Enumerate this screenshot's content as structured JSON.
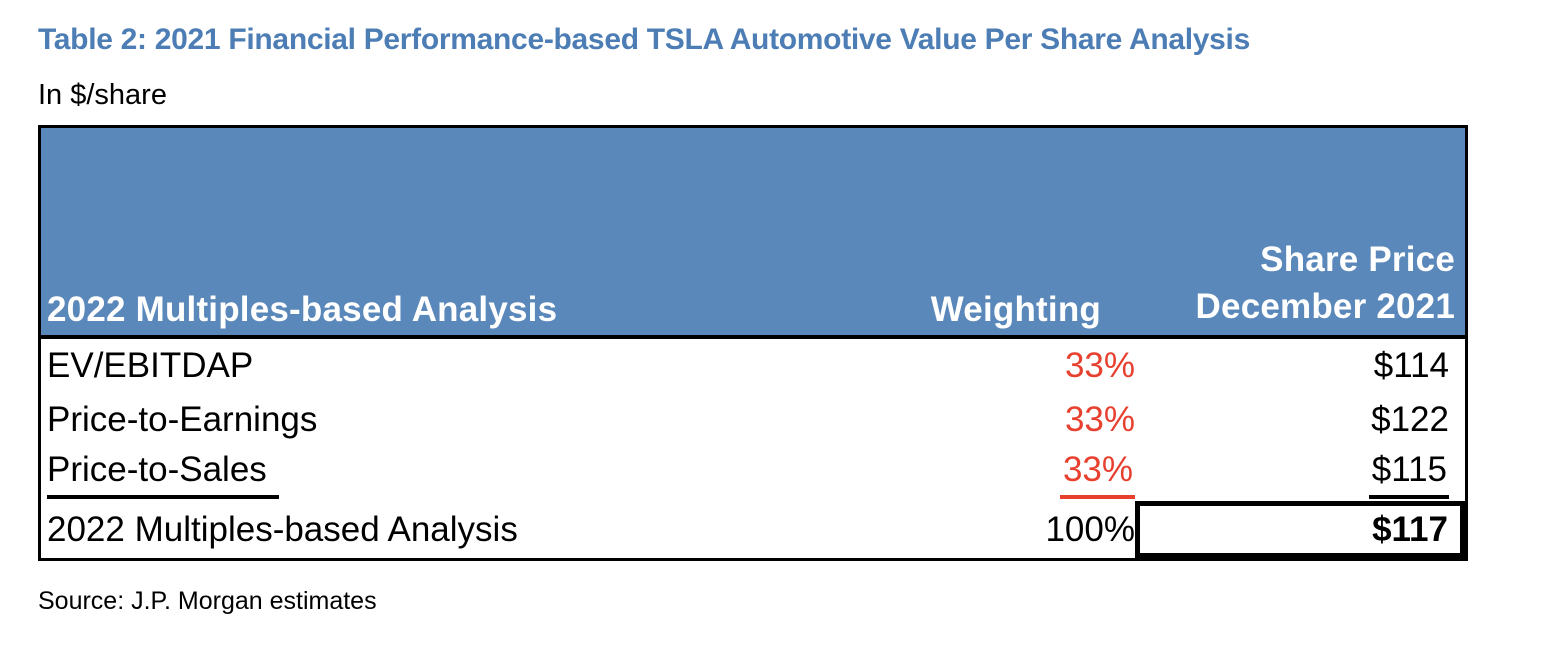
{
  "title": "Table 2: 2021 Financial Performance-based TSLA Automotive Value Per Share Analysis",
  "subtitle": "In $/share",
  "table": {
    "header": {
      "label": "2022 Multiples-based Analysis",
      "weighting": "Weighting",
      "share_price_line1": "Share Price",
      "share_price_line2": "December 2021"
    },
    "rows": [
      {
        "label": "EV/EBITDAP",
        "weighting": "33%",
        "share_price": "$114"
      },
      {
        "label": "Price-to-Earnings",
        "weighting": "33%",
        "share_price": "$122"
      },
      {
        "label": "Price-to-Sales",
        "weighting": "33%",
        "share_price": "$115"
      }
    ],
    "total_row": {
      "label": "2022 Multiples-based Analysis",
      "weighting": "100%",
      "share_price": "$117"
    }
  },
  "source": "Source: J.P. Morgan estimates",
  "colors": {
    "title_blue": "#4C7DB4",
    "header_bg": "#5B88BA",
    "weighting_red": "#E8402F"
  }
}
